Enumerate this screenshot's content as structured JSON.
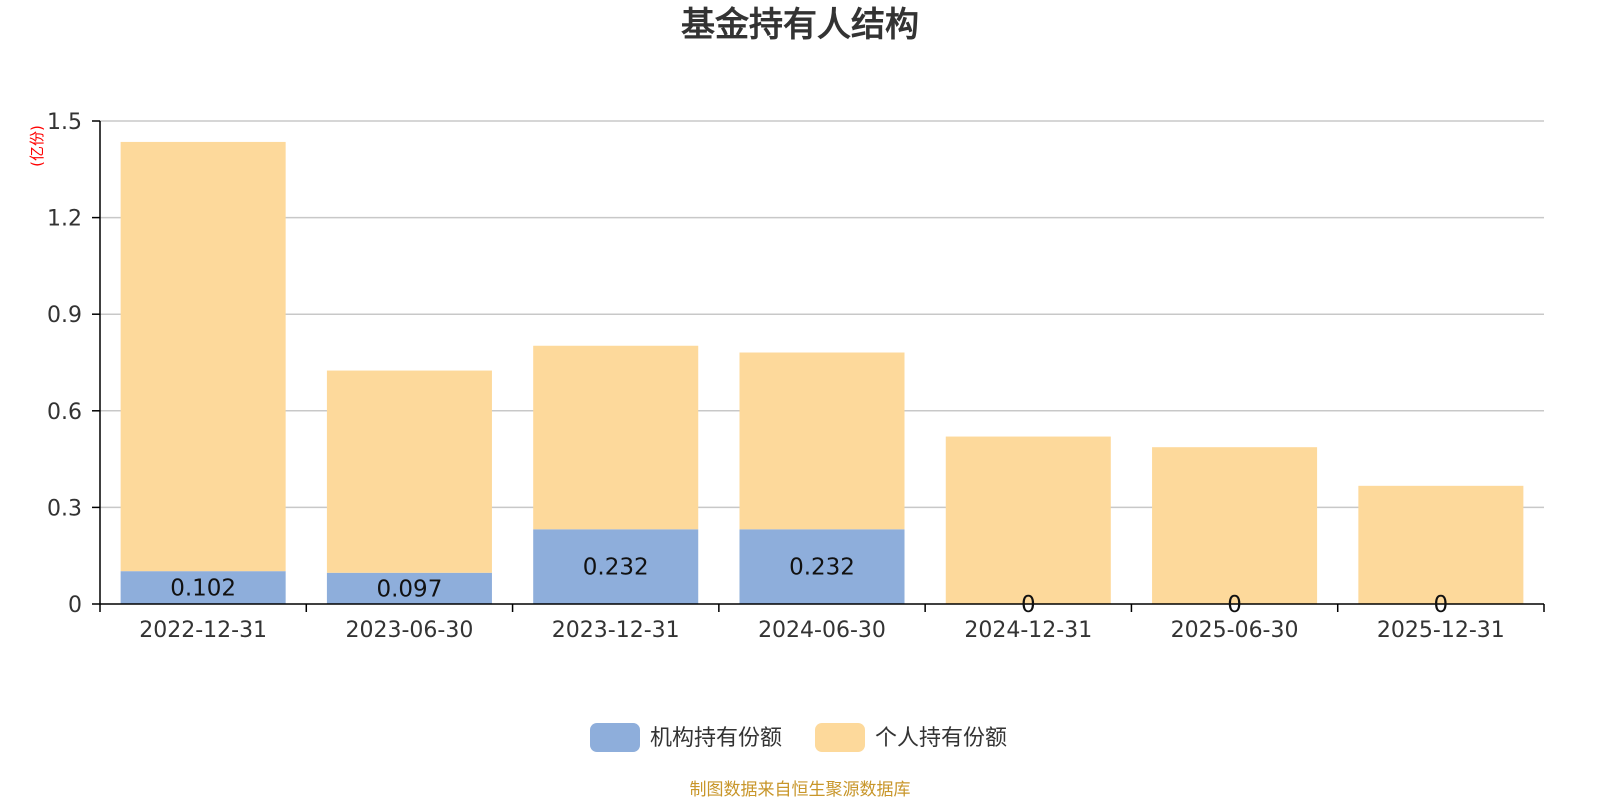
{
  "chart_data": {
    "type": "bar",
    "stacked": true,
    "title": "基金持有人结构",
    "unit_label": "(亿份)",
    "categories": [
      "2022-12-31",
      "2023-06-30",
      "2023-12-31",
      "2024-06-30",
      "2024-12-31",
      "2025-06-30",
      "2025-12-31"
    ],
    "series": [
      {
        "name": "机构持有份额",
        "values": [
          0.102,
          0.097,
          0.232,
          0.232,
          0,
          0,
          0
        ],
        "labels": [
          "0.102",
          "0.097",
          "0.232",
          "0.232",
          "0",
          "0",
          "0"
        ],
        "color": "#8eaedb"
      },
      {
        "name": "个人持有份额",
        "values": [
          1.333,
          0.628,
          0.57,
          0.549,
          0.52,
          0.487,
          0.367
        ],
        "color": "#fdd99b"
      }
    ],
    "ylim": [
      0,
      1.5
    ],
    "yticks": [
      "0",
      "0.3",
      "0.6",
      "0.9",
      "1.2",
      "1.5"
    ],
    "grid": true,
    "legend_position": "bottom"
  },
  "source_note": "制图数据来自恒生聚源数据库",
  "colors": {
    "grid": "#c8c8c8",
    "axis": "#000000",
    "text": "#333333"
  }
}
